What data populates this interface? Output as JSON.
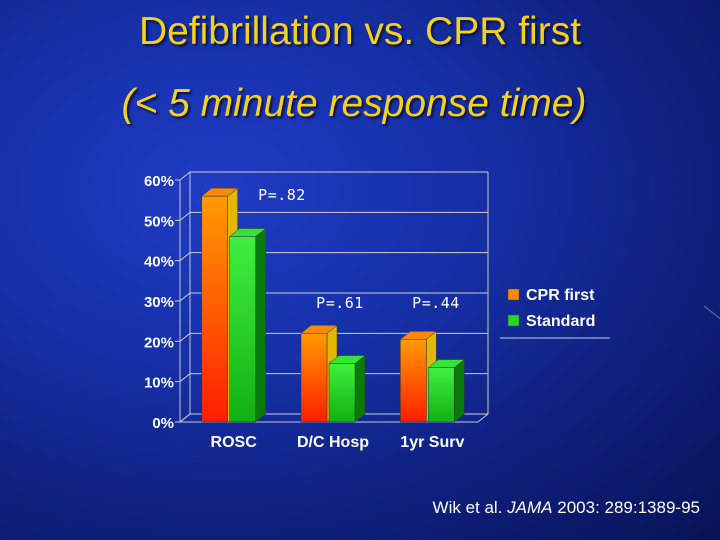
{
  "slide": {
    "title_line1": "Defibrillation vs. CPR first",
    "title_line2": "(< 5 minute response time)"
  },
  "citation": {
    "authors": "Wik et al.",
    "journal": "JAMA",
    "details": "2003: 289:1389-95"
  },
  "chart_data": {
    "type": "bar",
    "title": "",
    "xlabel": "",
    "ylabel": "",
    "categories": [
      "ROSC",
      "D/C Hosp",
      "1yr Surv"
    ],
    "series": [
      {
        "name": "CPR first",
        "values": [
          56,
          22,
          20.5
        ],
        "color_top": "#ff8a00",
        "color_bottom": "#ff2a00",
        "color_side": "#e0b800"
      },
      {
        "name": "Standard",
        "values": [
          46,
          14.5,
          13.5
        ],
        "color_top": "#33e633",
        "color_bottom": "#0ea80e",
        "color_side": "#0a7a0a"
      }
    ],
    "ylim": [
      0,
      60
    ],
    "yticks": [
      "0%",
      "10%",
      "20%",
      "30%",
      "40%",
      "50%",
      "60%"
    ],
    "ytick_values": [
      0,
      10,
      20,
      30,
      40,
      50,
      60
    ],
    "annotations": [
      "P=.82",
      "P=.61",
      "P=.44"
    ],
    "legend_position": "right",
    "grid": true
  }
}
